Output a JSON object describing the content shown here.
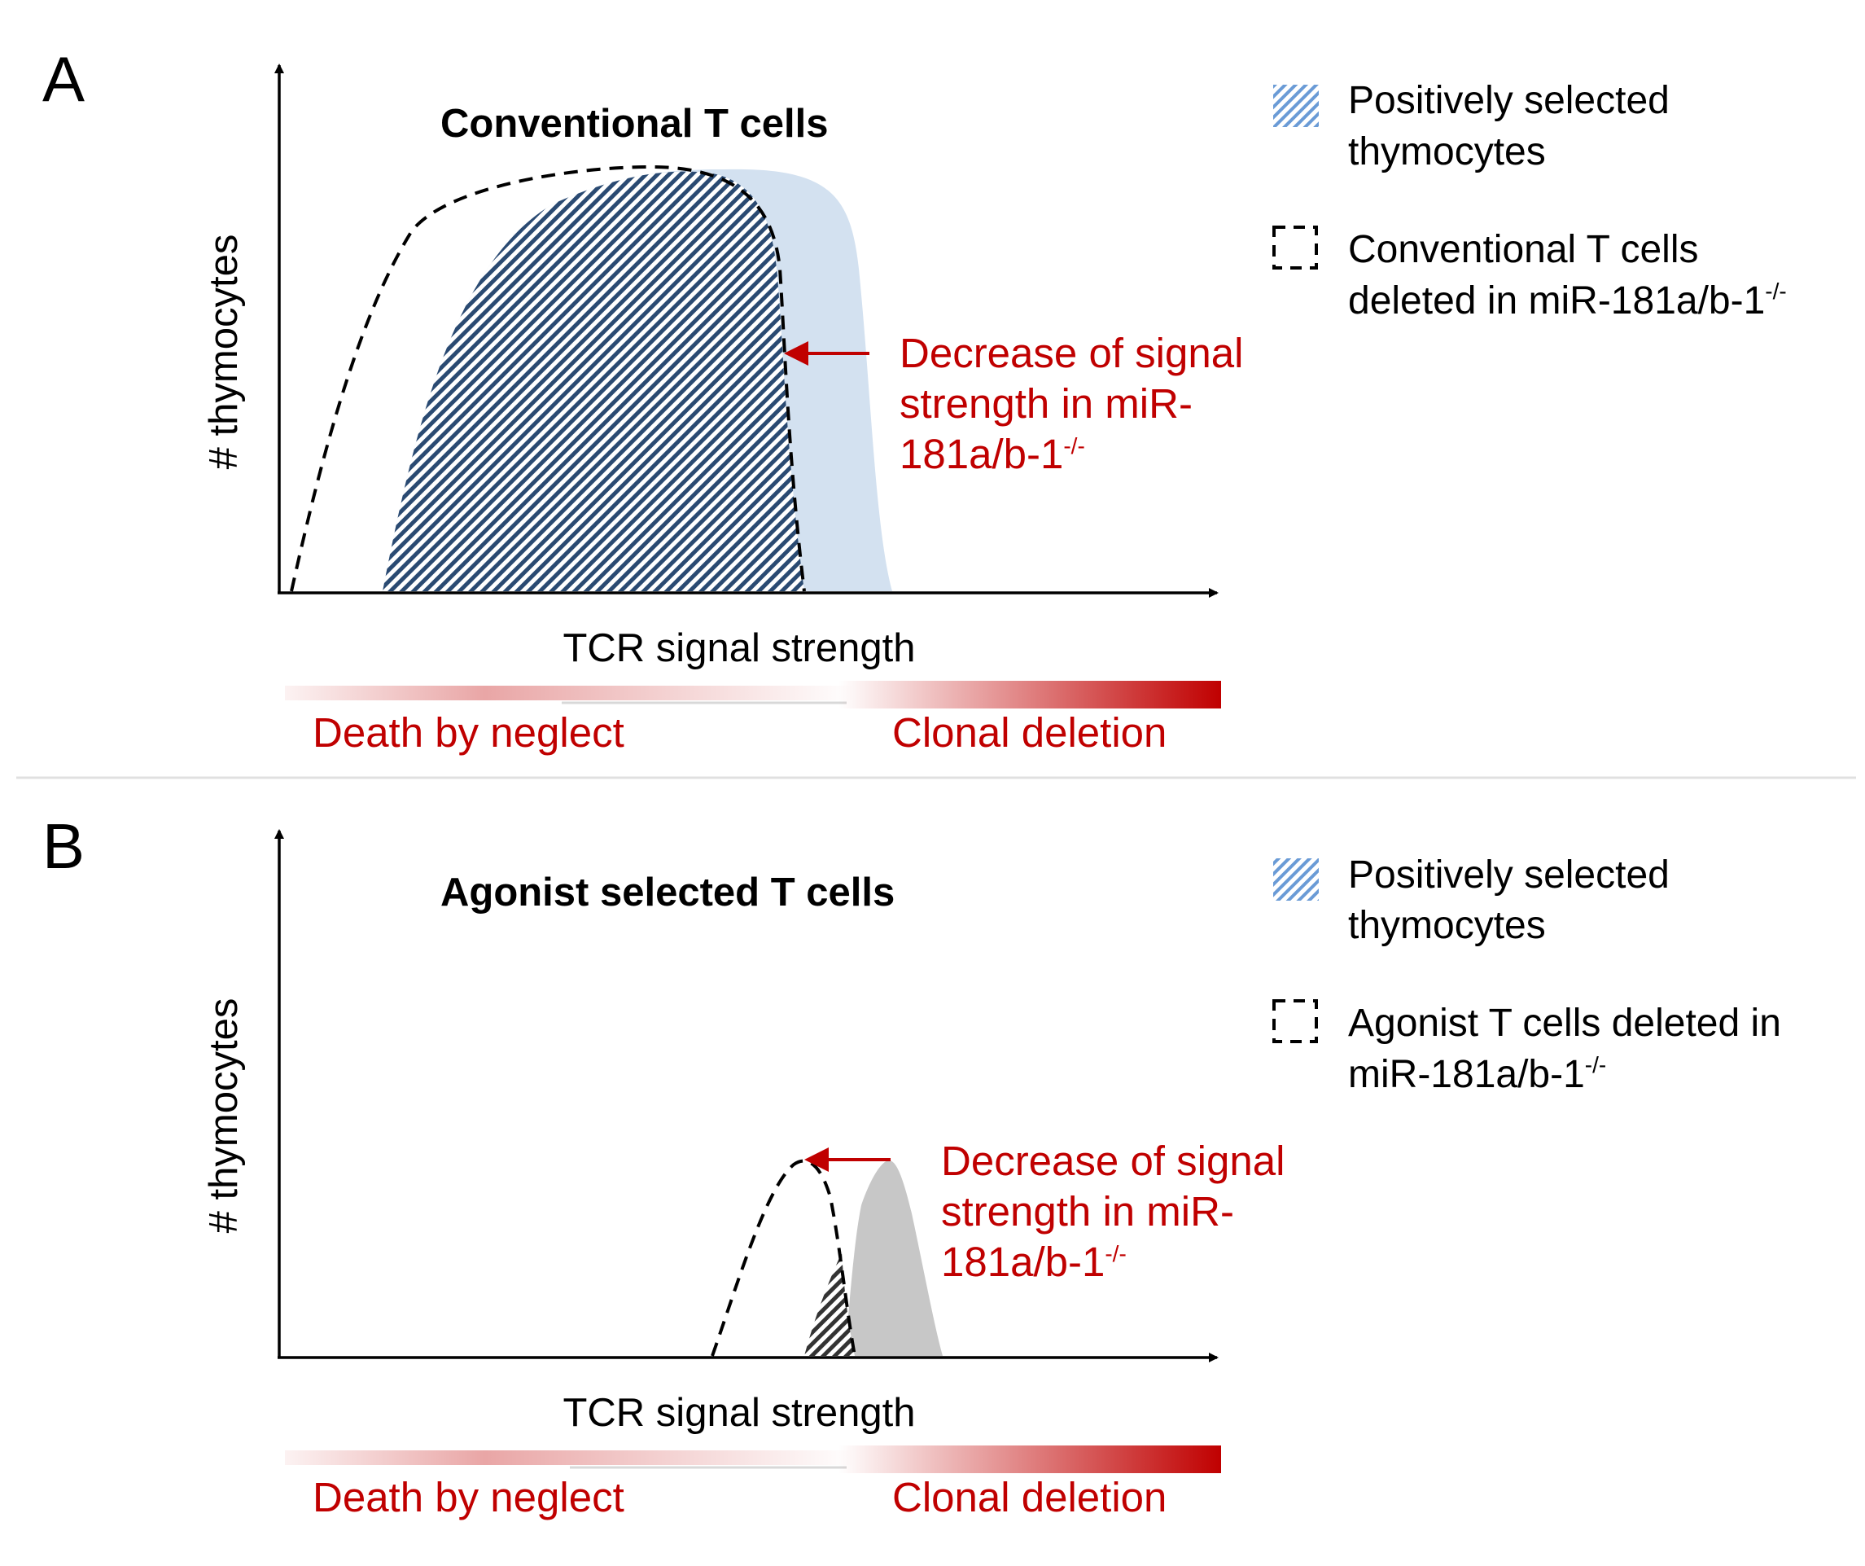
{
  "colors": {
    "accent_red": "#c00000",
    "light_blue": "#d3e1f0",
    "hatch_blue": "#2a4a72",
    "gray": "#c7c7c7"
  },
  "panel_a": {
    "letter": "A",
    "title": "Conventional T cells",
    "y_axis": "# thymocytes",
    "x_axis": "TCR signal strength",
    "arrow_text": [
      "Decrease of signal",
      "strength in miR-",
      "181a/b-1"
    ],
    "arrow_sup": "-/-",
    "gradient_left": "Death by neglect",
    "gradient_right": "Clonal deletion",
    "legend": {
      "item1": [
        "Positively selected",
        "thymocytes"
      ],
      "item2_line1": "Conventional T cells",
      "item2_line2": "deleted in miR-181a/b-1",
      "item2_sup": "-/-"
    }
  },
  "panel_b": {
    "letter": "B",
    "title": "Agonist selected T cells",
    "y_axis": "# thymocytes",
    "x_axis": "TCR signal strength",
    "arrow_text": [
      "Decrease of signal",
      "strength in miR-",
      "181a/b-1"
    ],
    "arrow_sup": "-/-",
    "gradient_left": "Death by neglect",
    "gradient_right": "Clonal deletion",
    "legend": {
      "item1": [
        "Positively selected",
        "thymocytes"
      ],
      "item2_line1": "Agonist T cells deleted in",
      "item2_line2": "miR-181a/b-1",
      "item2_sup": "-/-"
    }
  }
}
